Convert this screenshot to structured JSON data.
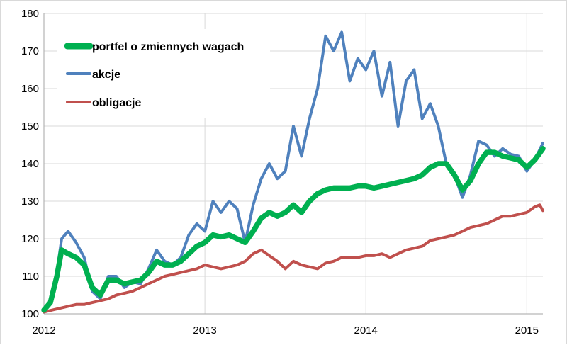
{
  "chart_data": {
    "type": "line",
    "title": "",
    "xlabel": "",
    "ylabel": "",
    "xlim": [
      2012.0,
      2015.1
    ],
    "ylim": [
      100,
      180
    ],
    "x_ticks": [
      2012,
      2013,
      2014,
      2015
    ],
    "y_ticks": [
      100,
      110,
      120,
      130,
      140,
      150,
      160,
      170,
      180
    ],
    "grid": "both",
    "legend_position": "top-left",
    "series": [
      {
        "name": "portfel o zmiennych wagach",
        "color": "#00b050",
        "x": [
          2012.0,
          2012.04,
          2012.08,
          2012.11,
          2012.15,
          2012.2,
          2012.25,
          2012.3,
          2012.35,
          2012.4,
          2012.45,
          2012.5,
          2012.55,
          2012.6,
          2012.65,
          2012.7,
          2012.75,
          2012.8,
          2012.85,
          2012.9,
          2012.95,
          2013.0,
          2013.05,
          2013.1,
          2013.15,
          2013.2,
          2013.25,
          2013.3,
          2013.35,
          2013.4,
          2013.45,
          2013.5,
          2013.55,
          2013.6,
          2013.65,
          2013.7,
          2013.75,
          2013.8,
          2013.85,
          2013.9,
          2013.95,
          2014.0,
          2014.05,
          2014.1,
          2014.15,
          2014.2,
          2014.25,
          2014.3,
          2014.35,
          2014.4,
          2014.45,
          2014.5,
          2014.55,
          2014.6,
          2014.65,
          2014.7,
          2014.75,
          2014.8,
          2014.85,
          2014.9,
          2014.95,
          2015.0,
          2015.05,
          2015.1
        ],
        "values": [
          101,
          103,
          110,
          117,
          116,
          115,
          113,
          107,
          105,
          109,
          109,
          108,
          108.5,
          109,
          111,
          114,
          113,
          113,
          114,
          116,
          118,
          119,
          121,
          120.5,
          121,
          120,
          119,
          122,
          125.5,
          127,
          126,
          127,
          129,
          127,
          130,
          132,
          133,
          133.5,
          133.5,
          133.5,
          134,
          134,
          133.5,
          134,
          134.5,
          135,
          135.5,
          136,
          137,
          139,
          140,
          140,
          137,
          133,
          135.5,
          140,
          143,
          143,
          142,
          141.5,
          141,
          139,
          141,
          144
        ]
      },
      {
        "name": "akcje",
        "color": "#4f81bd",
        "x": [
          2012.0,
          2012.04,
          2012.08,
          2012.11,
          2012.15,
          2012.2,
          2012.25,
          2012.3,
          2012.35,
          2012.4,
          2012.45,
          2012.5,
          2012.55,
          2012.6,
          2012.65,
          2012.7,
          2012.75,
          2012.8,
          2012.85,
          2012.9,
          2012.95,
          2013.0,
          2013.05,
          2013.1,
          2013.15,
          2013.2,
          2013.25,
          2013.3,
          2013.35,
          2013.4,
          2013.45,
          2013.5,
          2013.55,
          2013.6,
          2013.65,
          2013.7,
          2013.75,
          2013.8,
          2013.85,
          2013.9,
          2013.95,
          2014.0,
          2014.05,
          2014.1,
          2014.15,
          2014.2,
          2014.25,
          2014.3,
          2014.35,
          2014.4,
          2014.45,
          2014.5,
          2014.55,
          2014.6,
          2014.65,
          2014.7,
          2014.75,
          2014.8,
          2014.85,
          2014.9,
          2014.95,
          2015.0,
          2015.05,
          2015.1
        ],
        "values": [
          100.5,
          103,
          111,
          120,
          122,
          119,
          115,
          106,
          104,
          110,
          110,
          107,
          108.5,
          108,
          112,
          117,
          114,
          113,
          115,
          121,
          124,
          122,
          130,
          127,
          130,
          128,
          119,
          129,
          136,
          140,
          136,
          138,
          150,
          142,
          152,
          160,
          174,
          170,
          175,
          162,
          168,
          165,
          170,
          158,
          167,
          150,
          162,
          165,
          152,
          156,
          150,
          140,
          137,
          131,
          137,
          146,
          145,
          142,
          144,
          142.5,
          142,
          138,
          141,
          145.5
        ]
      },
      {
        "name": "obligacje",
        "color": "#c0504d",
        "x": [
          2012.0,
          2012.05,
          2012.1,
          2012.15,
          2012.2,
          2012.25,
          2012.3,
          2012.35,
          2012.4,
          2012.45,
          2012.5,
          2012.55,
          2012.6,
          2012.65,
          2012.7,
          2012.75,
          2012.8,
          2012.85,
          2012.9,
          2012.95,
          2013.0,
          2013.05,
          2013.1,
          2013.15,
          2013.2,
          2013.25,
          2013.3,
          2013.35,
          2013.4,
          2013.45,
          2013.5,
          2013.55,
          2013.6,
          2013.65,
          2013.7,
          2013.75,
          2013.8,
          2013.85,
          2013.9,
          2013.95,
          2014.0,
          2014.05,
          2014.1,
          2014.15,
          2014.2,
          2014.25,
          2014.3,
          2014.35,
          2014.4,
          2014.45,
          2014.5,
          2014.55,
          2014.6,
          2014.65,
          2014.7,
          2014.75,
          2014.8,
          2014.85,
          2014.9,
          2014.95,
          2015.0,
          2015.05,
          2015.08,
          2015.1
        ],
        "values": [
          100.5,
          101,
          101.5,
          102,
          102.5,
          102.5,
          103,
          103.5,
          104,
          105,
          105.5,
          106,
          107,
          108,
          109,
          110,
          110.5,
          111,
          111.5,
          112,
          113,
          112.5,
          112,
          112.5,
          113,
          114,
          116,
          117,
          115.5,
          114,
          112,
          114,
          113,
          112.5,
          112,
          113.5,
          114,
          115,
          115,
          115,
          115.5,
          115.5,
          116,
          115,
          116,
          117,
          117.5,
          118,
          119.5,
          120,
          120.5,
          121,
          122,
          123,
          123.5,
          124,
          125,
          126,
          126,
          126.5,
          127,
          128.5,
          129,
          127.5
        ]
      }
    ]
  }
}
